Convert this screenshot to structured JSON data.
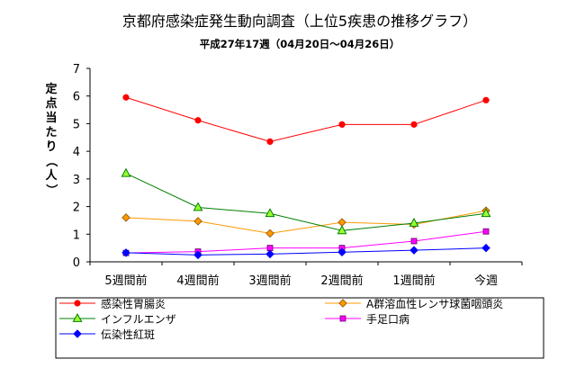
{
  "chart_data": {
    "type": "line",
    "title": "京都府感染症発生動向調査（上位5疾患の推移グラフ）",
    "subtitle": "平成27年17週（04月20日～04月26日）",
    "ylabel": "定点当たり（人）",
    "xlabel": "",
    "categories": [
      "5週間前",
      "4週間前",
      "3週間前",
      "2週間前",
      "1週間前",
      "今週"
    ],
    "ylim": [
      0,
      7
    ],
    "yticks": [
      0,
      1,
      2,
      3,
      4,
      5,
      6,
      7
    ],
    "grid": false,
    "legend_position": "bottom",
    "series": [
      {
        "name": "感染性胃腸炎",
        "color": "#ff0000",
        "marker": "circle",
        "values": [
          5.95,
          5.12,
          4.35,
          4.97,
          4.97,
          5.85
        ]
      },
      {
        "name": "A群溶血性レンサ球菌咽頭炎",
        "color": "#ff9900",
        "marker": "diamond",
        "values": [
          1.6,
          1.47,
          1.03,
          1.43,
          1.35,
          1.85
        ]
      },
      {
        "name": "インフルエンザ",
        "color": "#008000",
        "marker": "triangle",
        "values": [
          3.2,
          1.97,
          1.75,
          1.13,
          1.4,
          1.75
        ]
      },
      {
        "name": "手足口病",
        "color": "#ff00ff",
        "marker": "square",
        "values": [
          0.32,
          0.37,
          0.5,
          0.5,
          0.75,
          1.1
        ]
      },
      {
        "name": "伝染性紅斑",
        "color": "#0000ff",
        "marker": "diamond",
        "values": [
          0.33,
          0.25,
          0.28,
          0.35,
          0.42,
          0.5
        ]
      }
    ]
  }
}
